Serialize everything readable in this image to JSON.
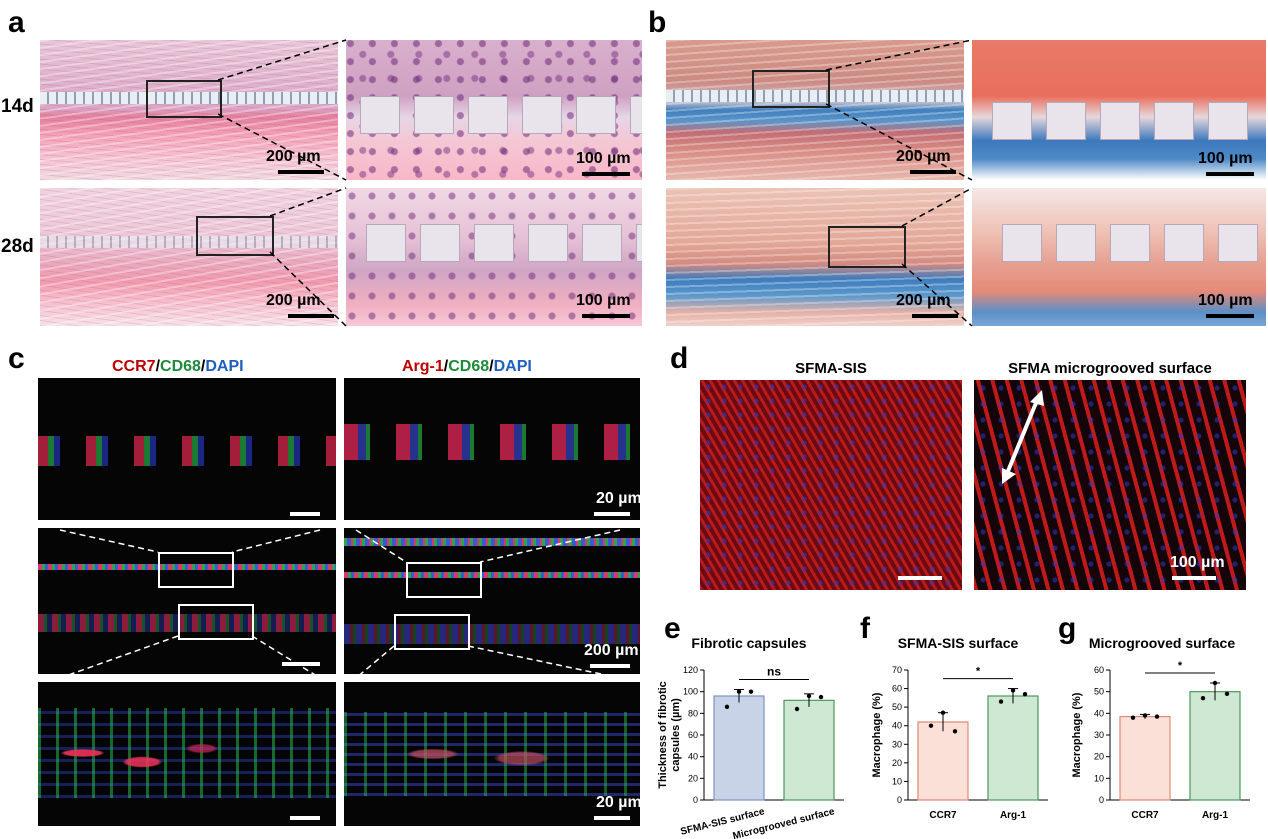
{
  "panel_labels": {
    "a": "a",
    "b": "b",
    "c": "c",
    "d": "d",
    "e": "e",
    "f": "f",
    "g": "g"
  },
  "row_labels": {
    "day14": "14d",
    "day28": "28d"
  },
  "scalebars": {
    "s200": "200 µm",
    "s100": "100 µm",
    "s20": "20 µm",
    "s200c": "200 µm",
    "s100d": "100 µm"
  },
  "panel_c": {
    "left_title": [
      {
        "text": "CCR7",
        "color": "#c00000"
      },
      {
        "text": "/",
        "color": "#000000"
      },
      {
        "text": "CD68",
        "color": "#1f8a3a"
      },
      {
        "text": "/",
        "color": "#000000"
      },
      {
        "text": "DAPI",
        "color": "#1f5fbf"
      }
    ],
    "right_title": [
      {
        "text": "Arg-1",
        "color": "#c00000"
      },
      {
        "text": "/",
        "color": "#000000"
      },
      {
        "text": "CD68",
        "color": "#1f8a3a"
      },
      {
        "text": "/",
        "color": "#000000"
      },
      {
        "text": "DAPI",
        "color": "#1f5fbf"
      }
    ]
  },
  "panel_d": {
    "left_title": "SFMA-SIS",
    "right_title": "SFMA microgrooved surface"
  },
  "colors": {
    "bar_blue": "#c9d3e8",
    "bar_blue_edge": "#7d92c0",
    "bar_green": "#cfe8d3",
    "bar_green_edge": "#4a9a5c",
    "bar_red": "#fbe0d8",
    "bar_red_edge": "#e08a78"
  },
  "chart_data": [
    {
      "id": "e",
      "type": "bar",
      "title": "Fibrotic capsules",
      "categories": [
        "SFMA-SIS surface",
        "Microgrooved surface"
      ],
      "values": [
        96,
        92
      ],
      "errors": [
        6,
        6
      ],
      "points": [
        [
          86,
          100,
          100
        ],
        [
          84,
          96,
          95
        ]
      ],
      "ylabel": "Thickness of fibrotic capsules (µm)",
      "ylim": [
        0,
        120
      ],
      "yticks": [
        0,
        20,
        40,
        60,
        80,
        100,
        120
      ],
      "significance": "ns",
      "grid": false
    },
    {
      "id": "f",
      "type": "bar",
      "title": "SFMA-SIS surface",
      "categories": [
        "CCR7",
        "Arg-1"
      ],
      "values": [
        42,
        56
      ],
      "errors": [
        5,
        4
      ],
      "points": [
        [
          40,
          47,
          37
        ],
        [
          53,
          59,
          57
        ]
      ],
      "ylabel": "Macrophage (%)",
      "ylim": [
        0,
        70
      ],
      "yticks": [
        0,
        10,
        20,
        30,
        40,
        50,
        60,
        70
      ],
      "significance": "*",
      "grid": false
    },
    {
      "id": "g",
      "type": "bar",
      "title": "Microgrooved surface",
      "categories": [
        "CCR7",
        "Arg-1"
      ],
      "values": [
        38.5,
        50
      ],
      "errors": [
        1,
        4
      ],
      "points": [
        [
          38,
          39,
          38.5
        ],
        [
          47,
          54,
          49
        ]
      ],
      "ylabel": "Macrophage (%)",
      "ylim": [
        0,
        60
      ],
      "yticks": [
        0,
        10,
        20,
        30,
        40,
        50,
        60
      ],
      "significance": "*",
      "grid": false
    }
  ]
}
